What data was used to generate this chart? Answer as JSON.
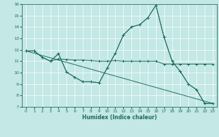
{
  "xlabel": "Humidex (Indice chaleur)",
  "xlim": [
    -0.5,
    23.5
  ],
  "ylim": [
    7,
    16
  ],
  "xticks": [
    0,
    1,
    2,
    3,
    4,
    5,
    6,
    7,
    8,
    9,
    10,
    11,
    12,
    13,
    14,
    15,
    16,
    17,
    18,
    19,
    20,
    21,
    22,
    23
  ],
  "yticks": [
    7,
    8,
    9,
    10,
    11,
    12,
    13,
    14,
    15,
    16
  ],
  "bg_color": "#c3e8e5",
  "line_color": "#1e6b5e",
  "line1_x": [
    0,
    1,
    2,
    3,
    4,
    5,
    6,
    7,
    8,
    9,
    10,
    11,
    12,
    13,
    14,
    15,
    16,
    17,
    18,
    19,
    20,
    21,
    22,
    23
  ],
  "line1_y": [
    11.9,
    11.9,
    11.35,
    11.0,
    11.2,
    11.15,
    11.1,
    11.1,
    11.05,
    11.0,
    11.0,
    11.05,
    11.0,
    11.0,
    11.0,
    11.0,
    11.0,
    10.75,
    10.75,
    10.75,
    10.75,
    10.75,
    10.75,
    10.75
  ],
  "line2_x": [
    0,
    1,
    2,
    3,
    4,
    5,
    6,
    7,
    8,
    9,
    10,
    11,
    12,
    13,
    14,
    15,
    16,
    17,
    18,
    19,
    20,
    21,
    22,
    23
  ],
  "line2_y": [
    11.9,
    11.9,
    11.35,
    11.0,
    11.65,
    10.05,
    9.6,
    9.2,
    9.2,
    9.1,
    10.4,
    11.7,
    13.3,
    14.0,
    14.2,
    14.8,
    15.9,
    13.1,
    11.0,
    10.1,
    9.0,
    8.5,
    7.3,
    7.3
  ],
  "line3_x": [
    0,
    23
  ],
  "line3_y": [
    11.9,
    7.3
  ],
  "line4_x": [
    0,
    1,
    2,
    3,
    4,
    5,
    6,
    7,
    8,
    9,
    10,
    11,
    12,
    13,
    14,
    15,
    16,
    17,
    18,
    19,
    20,
    21,
    22,
    23
  ],
  "line4_y": [
    11.9,
    11.9,
    11.35,
    11.0,
    11.65,
    10.05,
    9.6,
    9.2,
    9.2,
    9.1,
    10.4,
    11.7,
    13.3,
    14.0,
    14.2,
    14.8,
    15.9,
    13.1,
    11.0,
    10.1,
    9.0,
    8.5,
    7.3,
    7.3
  ]
}
